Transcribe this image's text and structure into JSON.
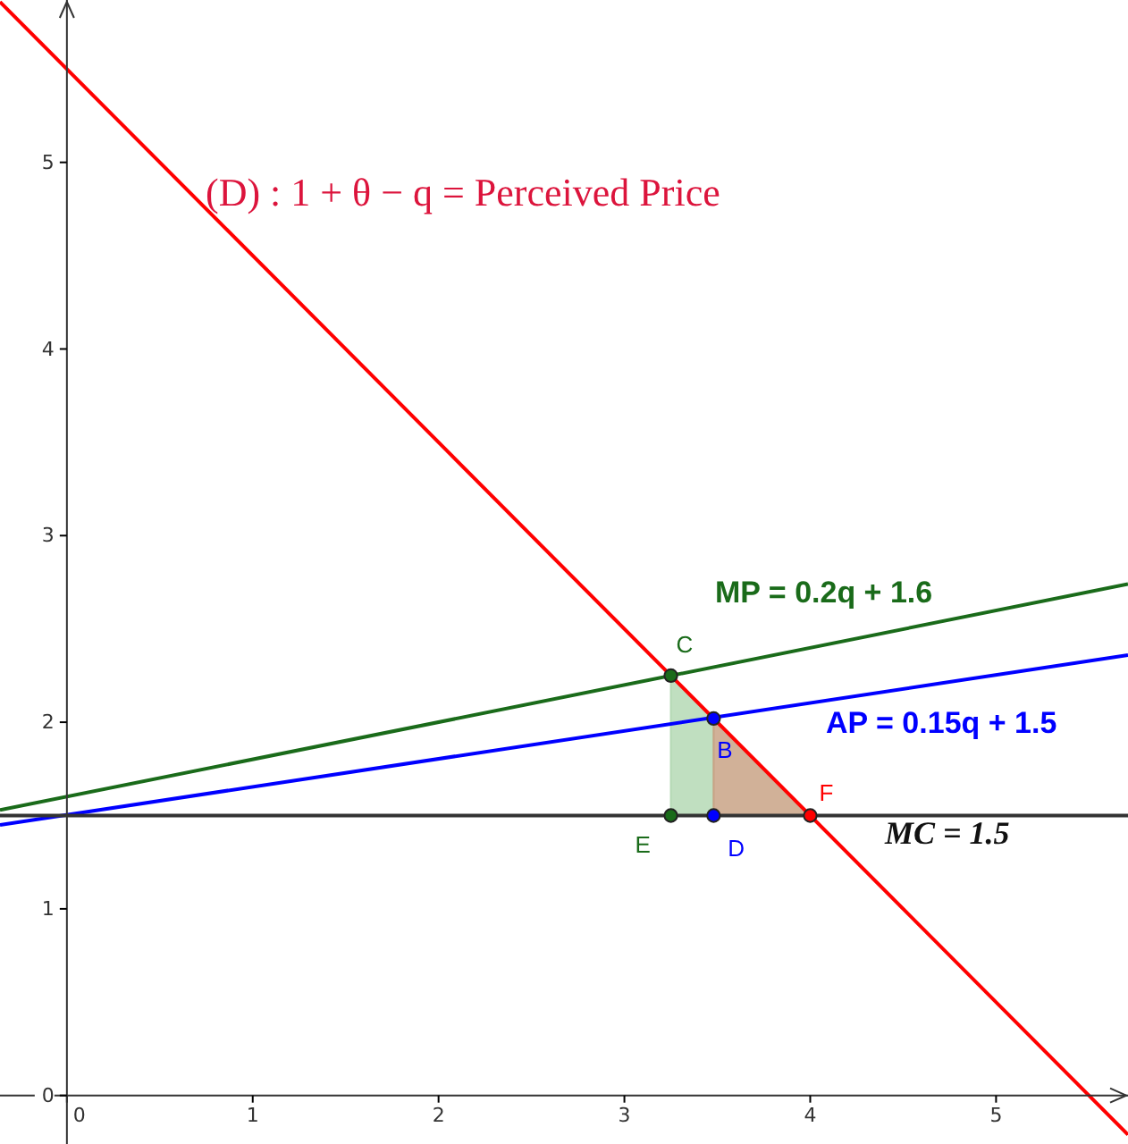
{
  "chart_data": {
    "type": "line",
    "xlim": [
      -0.36,
      5.71
    ],
    "ylim": [
      -0.26,
      5.87
    ],
    "xticks": [
      0,
      1,
      2,
      3,
      4,
      5
    ],
    "yticks": [
      0,
      1,
      2,
      3,
      4,
      5
    ],
    "grid": false,
    "series": [
      {
        "type": "area",
        "color": "#b5d9b5",
        "x": [
          3.25,
          3.48,
          3.48,
          3.25
        ],
        "values": [
          2.25,
          2.02,
          1.5,
          1.5
        ]
      },
      {
        "type": "area",
        "color": "#c9a386",
        "x": [
          3.48,
          4,
          3.48
        ],
        "values": [
          2.02,
          1.5,
          1.5
        ]
      },
      {
        "color": "#ff0000",
        "x": [
          -0.36,
          5.71
        ],
        "values": [
          5.86,
          -0.21
        ]
      },
      {
        "color": "#1a6b1a",
        "x": [
          -0.36,
          5.71
        ],
        "values": [
          1.53,
          2.74
        ]
      },
      {
        "color": "#0000ff",
        "x": [
          -0.36,
          5.71
        ],
        "values": [
          1.45,
          2.36
        ]
      },
      {
        "color": "#333333",
        "x": [
          -0.36,
          5.71
        ],
        "values": [
          1.5,
          1.5
        ]
      },
      {
        "type": "scatter",
        "marker": "circle",
        "x": [
          3.25,
          3.25,
          3.48,
          3.48,
          4
        ],
        "values": [
          2.25,
          1.5,
          2.02,
          1.5,
          1.5
        ],
        "colors": [
          "#1a6b1a",
          "#1a6b1a",
          "#0000ff",
          "#0000ff",
          "#ff0000"
        ]
      }
    ],
    "annotations": [
      "(D) : 1 + θ − q = Perceived Price",
      "MP = 0.2q + 1.6",
      "AP = 0.15q + 1.5",
      "MC = 1.5",
      {
        "text": "C",
        "x": 3.25,
        "y": 2.25
      },
      {
        "text": "B",
        "x": 3.48,
        "y": 2.02
      },
      {
        "text": "D",
        "x": 3.48,
        "y": 1.5
      },
      {
        "text": "E",
        "x": 3.25,
        "y": 1.5
      },
      {
        "text": "F",
        "x": 4,
        "y": 1.5
      }
    ]
  }
}
